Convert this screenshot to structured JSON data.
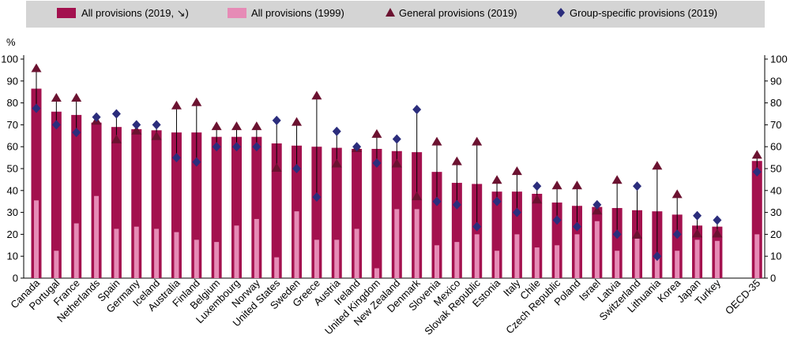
{
  "chart_data": {
    "type": "bar",
    "y_unit": "%",
    "ylim": [
      0,
      100
    ],
    "yticks": [
      0,
      10,
      20,
      30,
      40,
      50,
      60,
      70,
      80,
      90,
      100
    ],
    "grid": false,
    "legend_position": "top",
    "colors": {
      "bar_2019": "#a3114e",
      "bar_1999": "#e68bb6",
      "general_marker": "#6b1230",
      "group_marker": "#2b2d7c",
      "legend_bg": "#d4d4d4",
      "whisker": "#000000"
    },
    "categories": [
      "Canada",
      "Portugal",
      "France",
      "Netherlands",
      "Spain",
      "Germany",
      "Iceland",
      "Australia",
      "Finland",
      "Belgium",
      "Luxembourg",
      "Norway",
      "United States",
      "Sweden",
      "Greece",
      "Austria",
      "Ireland",
      "United Kingdom",
      "New Zealand",
      "Denmark",
      "Slovenia",
      "Mexico",
      "Slovak Republic",
      "Estonia",
      "Italy",
      "Chile",
      "Czech Republic",
      "Poland",
      "Israel",
      "Latvia",
      "Switzerland",
      "Lithuania",
      "Korea",
      "Japan",
      "Turkey",
      "OECD-35"
    ],
    "series": [
      {
        "name": "All provisions (2019, ↘)",
        "kind": "bar",
        "values": [
          86.5,
          76,
          74.5,
          71,
          69,
          68,
          67.5,
          66.5,
          66.5,
          64.5,
          64.5,
          64.5,
          61.5,
          60.5,
          60,
          59.5,
          59,
          59,
          58,
          57.5,
          48.5,
          43.5,
          43,
          39.5,
          39.5,
          38.5,
          34.5,
          33,
          32.5,
          32,
          31,
          30.5,
          29,
          24,
          23.5,
          53.5
        ]
      },
      {
        "name": "All provisions (1999)",
        "kind": "bar",
        "values": [
          35.5,
          12.5,
          25,
          37.5,
          22.5,
          23.5,
          22.5,
          21,
          17.5,
          16.5,
          24,
          27,
          9.5,
          30.5,
          17.5,
          17.5,
          22.5,
          4.5,
          31.5,
          31.5,
          15,
          16.5,
          20,
          12.5,
          20,
          14,
          15,
          20,
          26,
          12.5,
          18,
          9,
          12.5,
          17.5,
          17,
          20
        ]
      },
      {
        "name": "General provisions (2019)",
        "kind": "marker",
        "values": [
          95.5,
          82,
          82,
          71.5,
          63,
          67,
          64.5,
          78.5,
          80,
          69,
          69,
          69,
          50,
          71,
          83,
          52,
          59,
          65.5,
          52,
          37,
          62,
          53,
          62,
          44.5,
          48.5,
          35.5,
          42,
          42,
          30.5,
          44.5,
          19.5,
          51,
          38,
          20,
          20,
          56
        ]
      },
      {
        "name": "Group-specific provisions (2019)",
        "kind": "marker",
        "values": [
          77.5,
          70,
          66.5,
          73.5,
          75,
          70,
          70,
          55,
          53,
          60,
          60,
          60,
          72,
          50,
          37,
          67,
          60,
          52.5,
          63.5,
          77,
          35,
          33.5,
          23.5,
          35,
          30,
          42,
          26.5,
          23.5,
          33.5,
          20,
          42,
          10,
          20,
          28.5,
          26.5,
          48.5
        ]
      }
    ]
  }
}
